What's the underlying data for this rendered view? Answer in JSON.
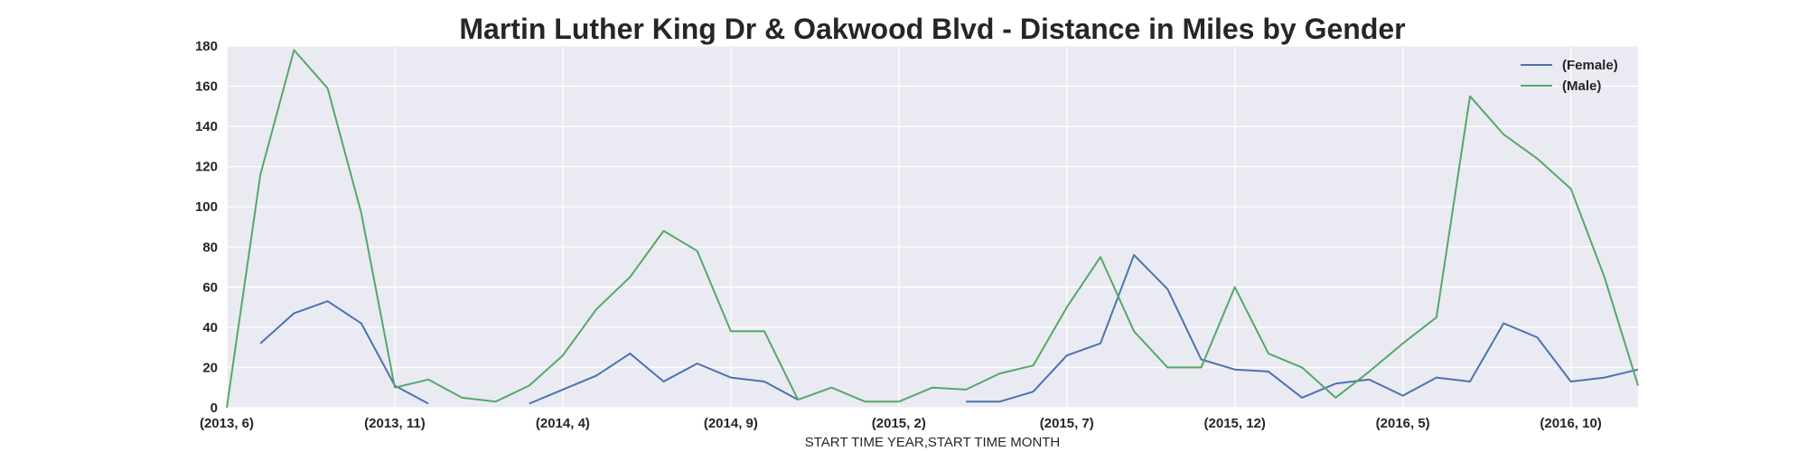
{
  "chart_data": {
    "type": "line",
    "title": "Martin Luther King Dr & Oakwood Blvd - Distance in Miles by Gender",
    "xlabel": "START TIME YEAR,START TIME MONTH",
    "ylabel": "",
    "ylim": [
      0,
      180
    ],
    "yticks": [
      0,
      20,
      40,
      60,
      80,
      100,
      120,
      140,
      160,
      180
    ],
    "x": [
      "(2013, 6)",
      "(2013, 7)",
      "(2013, 8)",
      "(2013, 9)",
      "(2013, 10)",
      "(2013, 11)",
      "(2013, 12)",
      "(2014, 1)",
      "(2014, 2)",
      "(2014, 3)",
      "(2014, 4)",
      "(2014, 5)",
      "(2014, 6)",
      "(2014, 7)",
      "(2014, 8)",
      "(2014, 9)",
      "(2014, 10)",
      "(2014, 11)",
      "(2014, 12)",
      "(2015, 1)",
      "(2015, 2)",
      "(2015, 3)",
      "(2015, 4)",
      "(2015, 5)",
      "(2015, 6)",
      "(2015, 7)",
      "(2015, 8)",
      "(2015, 9)",
      "(2015, 10)",
      "(2015, 11)",
      "(2015, 12)",
      "(2016, 1)",
      "(2016, 2)",
      "(2016, 3)",
      "(2016, 4)",
      "(2016, 5)",
      "(2016, 6)",
      "(2016, 7)",
      "(2016, 8)",
      "(2016, 9)",
      "(2016, 10)",
      "(2016, 11)",
      "(2016, 12)"
    ],
    "xticks": [
      "(2013, 6)",
      "(2013, 11)",
      "(2014, 4)",
      "(2014, 9)",
      "(2015, 2)",
      "(2015, 7)",
      "(2015, 12)",
      "(2016, 5)",
      "(2016, 10)"
    ],
    "series": [
      {
        "name": "(Female)",
        "color": "#4c72b0",
        "values": [
          null,
          32,
          47,
          53,
          42,
          11,
          2,
          null,
          null,
          2,
          9,
          16,
          27,
          13,
          22,
          15,
          13,
          4,
          null,
          null,
          null,
          null,
          3,
          3,
          8,
          26,
          32,
          76,
          59,
          24,
          19,
          18,
          5,
          12,
          14,
          6,
          15,
          13,
          42,
          35,
          13,
          15,
          19
        ]
      },
      {
        "name": "(Male)",
        "color": "#55a868",
        "values": [
          0,
          116,
          178,
          159,
          97,
          10,
          14,
          5,
          3,
          11,
          26,
          49,
          65,
          88,
          78,
          38,
          38,
          4,
          10,
          3,
          3,
          10,
          9,
          17,
          21,
          50,
          75,
          38,
          20,
          20,
          60,
          27,
          20,
          5,
          18,
          32,
          45,
          155,
          136,
          124,
          109,
          65,
          11
        ]
      }
    ],
    "grid": true,
    "legend": "top-right",
    "background": "#eaeaf2"
  }
}
